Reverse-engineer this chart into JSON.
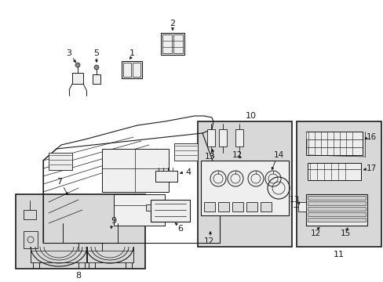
{
  "bg_color": "#ffffff",
  "line_color": "#1a1a1a",
  "gray_fill": "#d8d8d8",
  "fig_width": 4.89,
  "fig_height": 3.6,
  "dpi": 100
}
